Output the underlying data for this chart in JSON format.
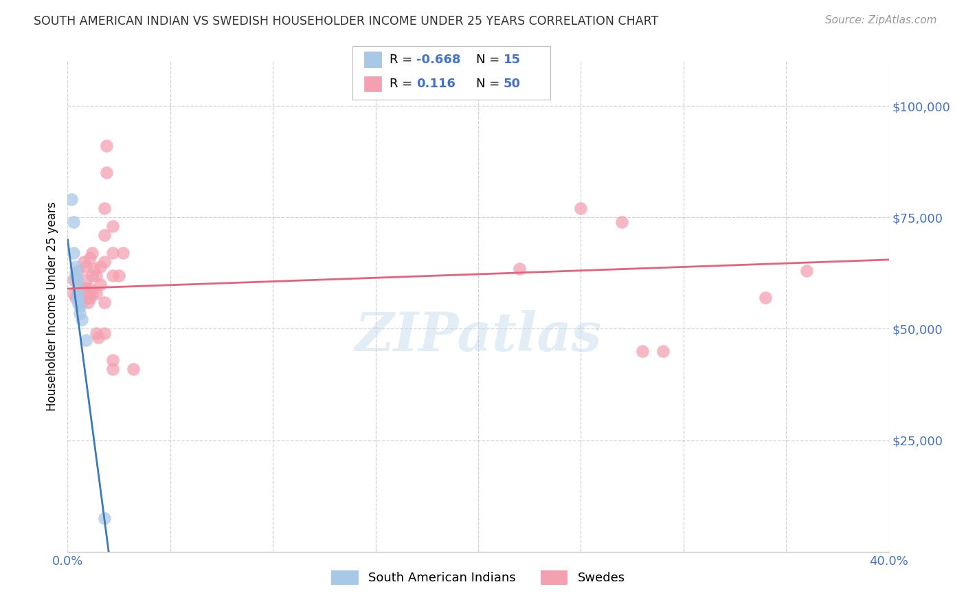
{
  "title": "SOUTH AMERICAN INDIAN VS SWEDISH HOUSEHOLDER INCOME UNDER 25 YEARS CORRELATION CHART",
  "source": "Source: ZipAtlas.com",
  "ylabel": "Householder Income Under 25 years",
  "xlim": [
    0.0,
    0.4
  ],
  "ylim": [
    0,
    110000
  ],
  "yticks": [
    0,
    25000,
    50000,
    75000,
    100000
  ],
  "ytick_labels": [
    "",
    "$25,000",
    "$50,000",
    "$75,000",
    "$100,000"
  ],
  "xticks": [
    0.0,
    0.05,
    0.1,
    0.15,
    0.2,
    0.25,
    0.3,
    0.35,
    0.4
  ],
  "color_blue": "#a8c8e8",
  "color_blue_line": "#3a7ab8",
  "color_pink": "#f4a0b0",
  "color_pink_line": "#e8607a",
  "background_color": "#ffffff",
  "watermark": "ZIPatlas",
  "legend_box_color": "#f0f4f8",
  "legend_border_color": "#cccccc",
  "blue_points": [
    [
      0.002,
      79000
    ],
    [
      0.003,
      74000
    ],
    [
      0.003,
      67000
    ],
    [
      0.004,
      64000
    ],
    [
      0.004,
      62500
    ],
    [
      0.004,
      61500
    ],
    [
      0.005,
      60500
    ],
    [
      0.005,
      58000
    ],
    [
      0.005,
      57000
    ],
    [
      0.005,
      56000
    ],
    [
      0.006,
      55000
    ],
    [
      0.006,
      53500
    ],
    [
      0.007,
      52000
    ],
    [
      0.009,
      47500
    ],
    [
      0.018,
      7500
    ]
  ],
  "pink_points": [
    [
      0.003,
      61000
    ],
    [
      0.003,
      58000
    ],
    [
      0.004,
      57000
    ],
    [
      0.005,
      63000
    ],
    [
      0.005,
      59000
    ],
    [
      0.006,
      57500
    ],
    [
      0.007,
      57000
    ],
    [
      0.007,
      56000
    ],
    [
      0.008,
      65000
    ],
    [
      0.008,
      59000
    ],
    [
      0.009,
      64000
    ],
    [
      0.009,
      61000
    ],
    [
      0.009,
      59000
    ],
    [
      0.01,
      57000
    ],
    [
      0.01,
      56000
    ],
    [
      0.011,
      66000
    ],
    [
      0.011,
      59000
    ],
    [
      0.011,
      57000
    ],
    [
      0.012,
      67000
    ],
    [
      0.012,
      62000
    ],
    [
      0.012,
      58000
    ],
    [
      0.013,
      63500
    ],
    [
      0.014,
      62000
    ],
    [
      0.014,
      58000
    ],
    [
      0.014,
      49000
    ],
    [
      0.015,
      48000
    ],
    [
      0.016,
      64000
    ],
    [
      0.016,
      60000
    ],
    [
      0.018,
      77000
    ],
    [
      0.018,
      71000
    ],
    [
      0.018,
      65000
    ],
    [
      0.018,
      56000
    ],
    [
      0.018,
      49000
    ],
    [
      0.019,
      91000
    ],
    [
      0.019,
      85000
    ],
    [
      0.022,
      73000
    ],
    [
      0.022,
      67000
    ],
    [
      0.022,
      62000
    ],
    [
      0.022,
      43000
    ],
    [
      0.022,
      41000
    ],
    [
      0.025,
      62000
    ],
    [
      0.027,
      67000
    ],
    [
      0.032,
      41000
    ],
    [
      0.22,
      63500
    ],
    [
      0.25,
      77000
    ],
    [
      0.27,
      74000
    ],
    [
      0.28,
      45000
    ],
    [
      0.29,
      45000
    ],
    [
      0.34,
      57000
    ],
    [
      0.36,
      63000
    ]
  ],
  "blue_line_x": [
    0.0,
    0.02
  ],
  "blue_line_y": [
    70000,
    0
  ],
  "pink_line_x": [
    0.0,
    0.4
  ],
  "pink_line_y": [
    59000,
    65500
  ]
}
